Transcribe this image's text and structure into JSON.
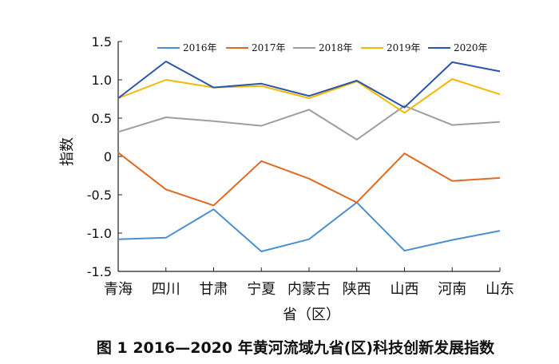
{
  "chart_data": {
    "type": "line",
    "title": "图 1   2016—2020 年黄河流域九省(区)科技创新发展指数",
    "xlabel": "省（区）",
    "ylabel": "指数",
    "ylim": [
      -1.5,
      1.5
    ],
    "yticks": [
      "1.5",
      "1.0",
      "0.5",
      "0",
      "-0.5",
      "-1.0",
      "-1.5"
    ],
    "legend_position": "top",
    "grid": false,
    "categories": [
      "青海",
      "四川",
      "甘肃",
      "宁夏",
      "内蒙古",
      "陕西",
      "山西",
      "河南",
      "山东"
    ],
    "series": [
      {
        "name": "2016年",
        "color": "#4a8fd0",
        "values": [
          -1.08,
          -1.06,
          -0.69,
          -1.24,
          -1.08,
          -0.6,
          -1.23,
          -1.09,
          -0.97
        ]
      },
      {
        "name": "2017年",
        "color": "#e06a1f",
        "values": [
          0.05,
          -0.43,
          -0.64,
          -0.06,
          -0.29,
          -0.6,
          0.04,
          -0.32,
          -0.28
        ]
      },
      {
        "name": "2018年",
        "color": "#9e9e9e",
        "values": [
          0.32,
          0.51,
          0.46,
          0.4,
          0.61,
          0.22,
          0.66,
          0.41,
          0.45
        ]
      },
      {
        "name": "2019年",
        "color": "#f5b800",
        "values": [
          0.76,
          1.0,
          0.9,
          0.92,
          0.76,
          0.98,
          0.57,
          1.01,
          0.81
        ]
      },
      {
        "name": "2020年",
        "color": "#2a56a8",
        "values": [
          0.76,
          1.24,
          0.9,
          0.95,
          0.79,
          0.99,
          0.64,
          1.23,
          1.11
        ]
      }
    ]
  }
}
